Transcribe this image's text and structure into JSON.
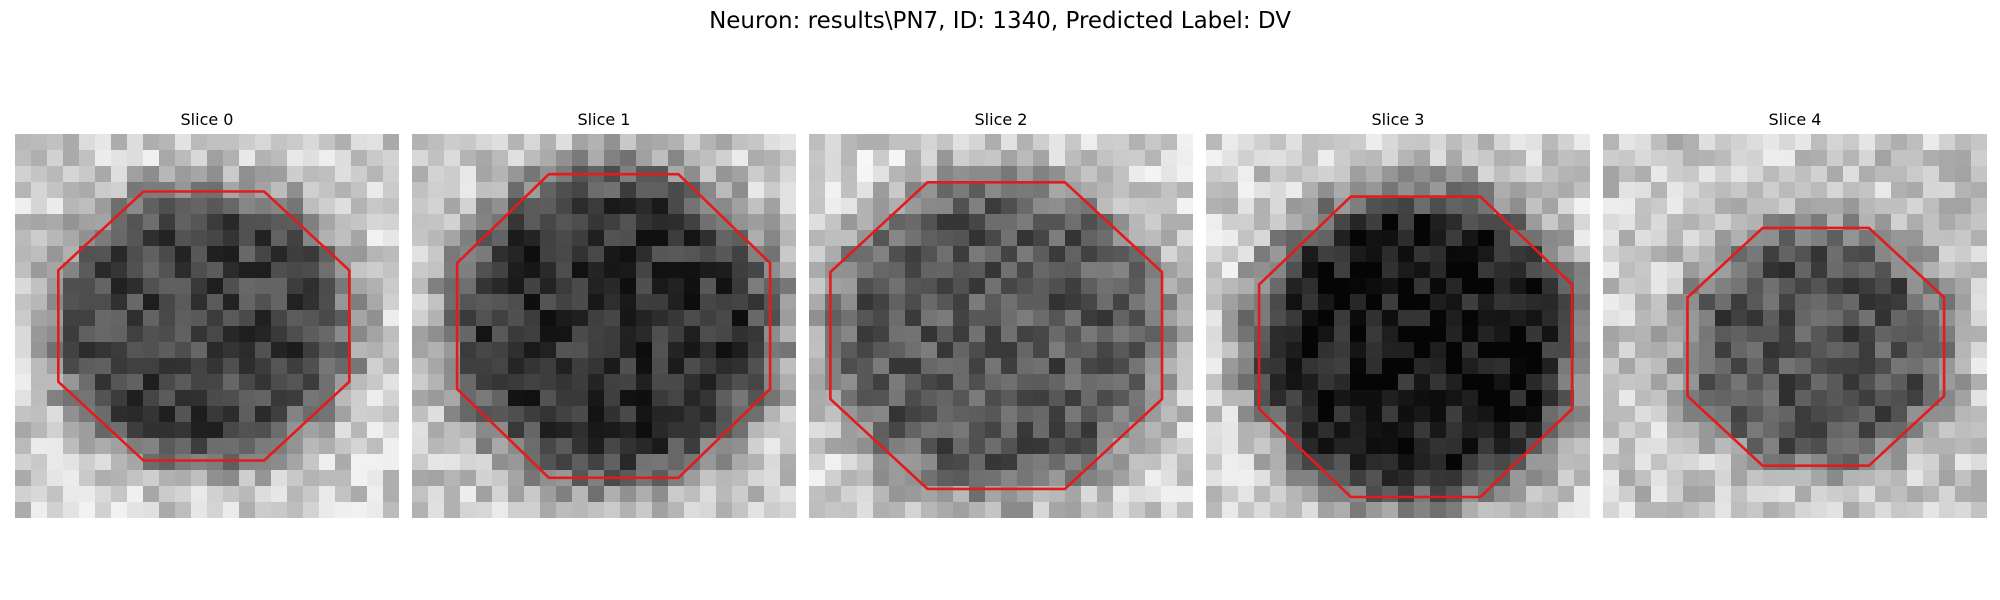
{
  "figure": {
    "title": "Neuron: results\\PN7, ID: 1340, Predicted Label: DV"
  },
  "panels": [
    {
      "title": "Slice 0"
    },
    {
      "title": "Slice 1"
    },
    {
      "title": "Slice 2"
    },
    {
      "title": "Slice 3"
    },
    {
      "title": "Slice 4"
    }
  ],
  "colors": {
    "contour": "#e41a1c",
    "background": "#ffffff"
  }
}
